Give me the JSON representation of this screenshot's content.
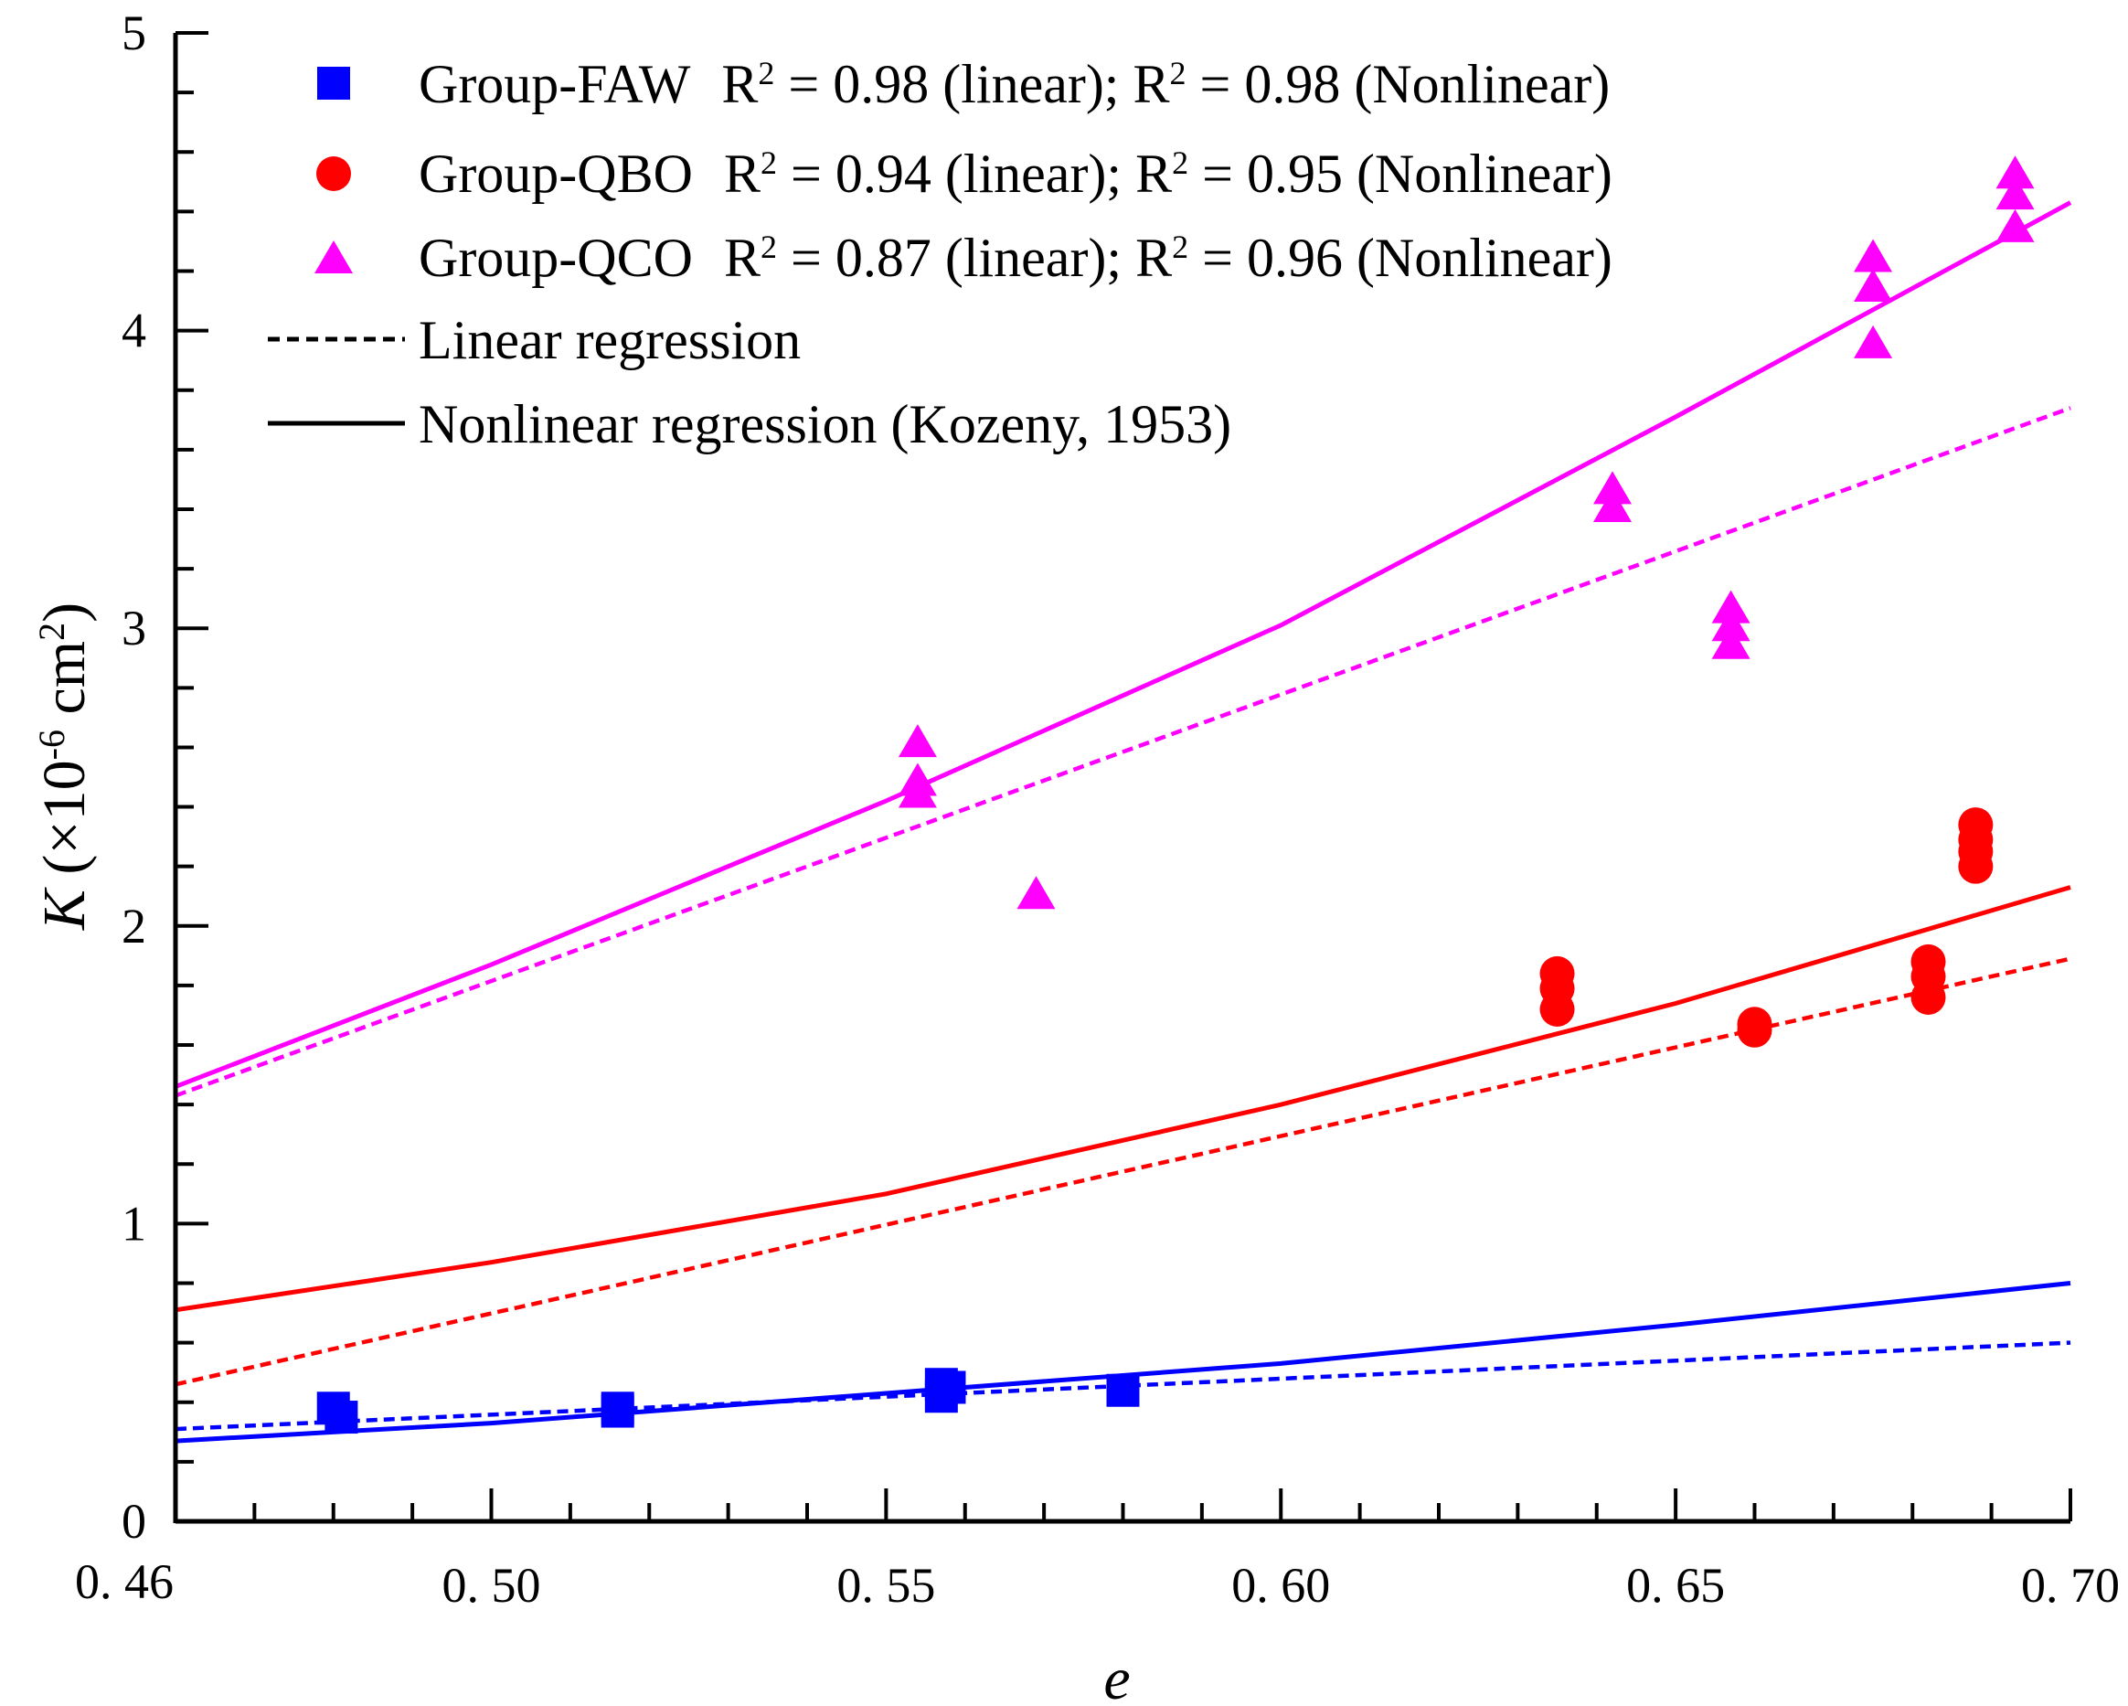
{
  "chart_data": {
    "type": "scatter",
    "title": "",
    "xlabel": "e",
    "ylabel_var": "K",
    "ylabel_unit_a": " (×10",
    "ylabel_unit_exp": "-6",
    "ylabel_unit_b": " cm",
    "ylabel_unit_exp2": "2",
    "ylabel_unit_c": ")",
    "xlim": [
      0.46,
      0.7
    ],
    "ylim": [
      0,
      5
    ],
    "x_ticks": [
      {
        "value": 0.46,
        "label": "0. 46"
      },
      {
        "value": 0.5,
        "label": "0. 50"
      },
      {
        "value": 0.55,
        "label": "0. 55"
      },
      {
        "value": 0.6,
        "label": "0. 60"
      },
      {
        "value": 0.65,
        "label": "0. 65"
      },
      {
        "value": 0.7,
        "label": "0. 70"
      }
    ],
    "y_ticks": [
      {
        "value": 0,
        "label": "0"
      },
      {
        "value": 1,
        "label": "1"
      },
      {
        "value": 2,
        "label": "2"
      },
      {
        "value": 3,
        "label": "3"
      },
      {
        "value": 4,
        "label": "4"
      },
      {
        "value": 5,
        "label": "5"
      }
    ],
    "grid": false,
    "legend_position": "top-left",
    "series": [
      {
        "name": "Group-FAW",
        "legend_r2_linear": "0.98",
        "legend_r2_nonlinear": "0.98",
        "legend_close": "(Nonlinear)",
        "color": "#0000ff",
        "marker": "square",
        "points": [
          [
            0.48,
            0.38
          ],
          [
            0.481,
            0.35
          ],
          [
            0.516,
            0.38
          ],
          [
            0.516,
            0.37
          ],
          [
            0.557,
            0.46
          ],
          [
            0.557,
            0.42
          ],
          [
            0.558,
            0.45
          ],
          [
            0.58,
            0.44
          ]
        ],
        "linear_fit": [
          [
            0.46,
            0.31
          ],
          [
            0.7,
            0.6
          ]
        ],
        "nonlinear_fit": [
          [
            0.46,
            0.27
          ],
          [
            0.5,
            0.33
          ],
          [
            0.55,
            0.43
          ],
          [
            0.6,
            0.53
          ],
          [
            0.65,
            0.66
          ],
          [
            0.7,
            0.8
          ]
        ]
      },
      {
        "name": "Group-QBO",
        "legend_r2_linear": "0.94",
        "legend_r2_nonlinear": "0.95",
        "legend_close": "(Nonlinear)",
        "color": "#ff0000",
        "marker": "circle",
        "points": [
          [
            0.635,
            1.84
          ],
          [
            0.635,
            1.79
          ],
          [
            0.635,
            1.72
          ],
          [
            0.66,
            1.67
          ],
          [
            0.66,
            1.65
          ],
          [
            0.682,
            1.88
          ],
          [
            0.682,
            1.83
          ],
          [
            0.682,
            1.76
          ],
          [
            0.688,
            2.34
          ],
          [
            0.688,
            2.29
          ],
          [
            0.688,
            2.25
          ],
          [
            0.688,
            2.2
          ]
        ],
        "linear_fit": [
          [
            0.46,
            0.46
          ],
          [
            0.7,
            1.89
          ]
        ],
        "nonlinear_fit": [
          [
            0.46,
            0.71
          ],
          [
            0.5,
            0.87
          ],
          [
            0.55,
            1.1
          ],
          [
            0.6,
            1.4
          ],
          [
            0.65,
            1.74
          ],
          [
            0.7,
            2.13
          ]
        ]
      },
      {
        "name": "Group-QCO",
        "legend_r2_linear": "0.87",
        "legend_r2_nonlinear": "0.96",
        "legend_close": "(Nonlinear)",
        "color": "#ff00ff",
        "marker": "triangle",
        "points": [
          [
            0.554,
            2.61
          ],
          [
            0.554,
            2.48
          ],
          [
            0.554,
            2.44
          ],
          [
            0.569,
            2.1
          ],
          [
            0.642,
            3.46
          ],
          [
            0.642,
            3.4
          ],
          [
            0.657,
            3.06
          ],
          [
            0.657,
            3.0
          ],
          [
            0.657,
            2.94
          ],
          [
            0.675,
            4.24
          ],
          [
            0.675,
            4.14
          ],
          [
            0.675,
            3.95
          ],
          [
            0.693,
            4.52
          ],
          [
            0.693,
            4.45
          ],
          [
            0.693,
            4.34
          ]
        ],
        "linear_fit": [
          [
            0.46,
            1.43
          ],
          [
            0.7,
            3.74
          ]
        ],
        "nonlinear_fit": [
          [
            0.46,
            1.46
          ],
          [
            0.5,
            1.87
          ],
          [
            0.55,
            2.42
          ],
          [
            0.6,
            3.01
          ],
          [
            0.65,
            3.71
          ],
          [
            0.7,
            4.43
          ]
        ]
      }
    ],
    "legend_extra": [
      {
        "name": "Linear regression",
        "style": "dashed"
      },
      {
        "name": "Nonlinear regression (Kozeny, 1953)",
        "style": "solid"
      }
    ],
    "legend_r_symbol": "R",
    "legend_r_exp": "2",
    "legend_linear_part": "(linear);"
  }
}
